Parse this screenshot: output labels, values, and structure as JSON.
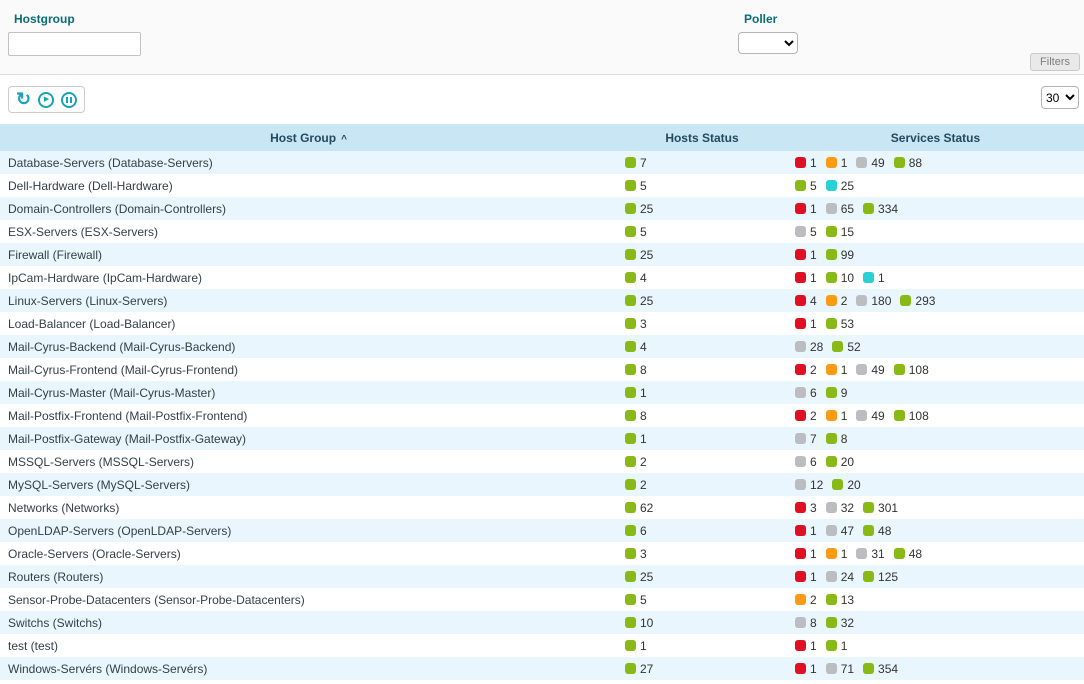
{
  "filters": {
    "hostgroup_label": "Hostgroup",
    "hostgroup_value": "",
    "poller_label": "Poller",
    "poller_value": "",
    "filters_button_label": "Filters"
  },
  "toolbar": {
    "page_size": "30"
  },
  "icons": {
    "sort_asc": "^",
    "refresh": "↻",
    "play": "▶"
  },
  "status_colors": {
    "green": "#88B917",
    "red": "#E01022",
    "orange": "#FF9A13",
    "gray": "#BCBDC0",
    "cyan": "#2AD1D4"
  },
  "table": {
    "headers": {
      "host_group": "Host Group",
      "hosts_status": "Hosts Status",
      "services_status": "Services Status"
    },
    "rows": [
      {
        "name": "Database-Servers (Database-Servers)",
        "hosts": [
          {
            "color": "green",
            "value": "7"
          }
        ],
        "services": [
          {
            "color": "red",
            "value": "1"
          },
          {
            "color": "orange",
            "value": "1"
          },
          {
            "color": "gray",
            "value": "49"
          },
          {
            "color": "green",
            "value": "88"
          }
        ]
      },
      {
        "name": "Dell-Hardware (Dell-Hardware)",
        "hosts": [
          {
            "color": "green",
            "value": "5"
          }
        ],
        "services": [
          {
            "color": "green",
            "value": "5"
          },
          {
            "color": "cyan",
            "value": "25"
          }
        ]
      },
      {
        "name": "Domain-Controllers (Domain-Controllers)",
        "hosts": [
          {
            "color": "green",
            "value": "25"
          }
        ],
        "services": [
          {
            "color": "red",
            "value": "1"
          },
          {
            "color": "gray",
            "value": "65"
          },
          {
            "color": "green",
            "value": "334"
          }
        ]
      },
      {
        "name": "ESX-Servers (ESX-Servers)",
        "hosts": [
          {
            "color": "green",
            "value": "5"
          }
        ],
        "services": [
          {
            "color": "gray",
            "value": "5"
          },
          {
            "color": "green",
            "value": "15"
          }
        ]
      },
      {
        "name": "Firewall (Firewall)",
        "hosts": [
          {
            "color": "green",
            "value": "25"
          }
        ],
        "services": [
          {
            "color": "red",
            "value": "1"
          },
          {
            "color": "green",
            "value": "99"
          }
        ]
      },
      {
        "name": "IpCam-Hardware (IpCam-Hardware)",
        "hosts": [
          {
            "color": "green",
            "value": "4"
          }
        ],
        "services": [
          {
            "color": "red",
            "value": "1"
          },
          {
            "color": "green",
            "value": "10"
          },
          {
            "color": "cyan",
            "value": "1"
          }
        ]
      },
      {
        "name": "Linux-Servers (Linux-Servers)",
        "hosts": [
          {
            "color": "green",
            "value": "25"
          }
        ],
        "services": [
          {
            "color": "red",
            "value": "4"
          },
          {
            "color": "orange",
            "value": "2"
          },
          {
            "color": "gray",
            "value": "180"
          },
          {
            "color": "green",
            "value": "293"
          }
        ]
      },
      {
        "name": "Load-Balancer (Load-Balancer)",
        "hosts": [
          {
            "color": "green",
            "value": "3"
          }
        ],
        "services": [
          {
            "color": "red",
            "value": "1"
          },
          {
            "color": "green",
            "value": "53"
          }
        ]
      },
      {
        "name": "Mail-Cyrus-Backend (Mail-Cyrus-Backend)",
        "hosts": [
          {
            "color": "green",
            "value": "4"
          }
        ],
        "services": [
          {
            "color": "gray",
            "value": "28"
          },
          {
            "color": "green",
            "value": "52"
          }
        ]
      },
      {
        "name": "Mail-Cyrus-Frontend (Mail-Cyrus-Frontend)",
        "hosts": [
          {
            "color": "green",
            "value": "8"
          }
        ],
        "services": [
          {
            "color": "red",
            "value": "2"
          },
          {
            "color": "orange",
            "value": "1"
          },
          {
            "color": "gray",
            "value": "49"
          },
          {
            "color": "green",
            "value": "108"
          }
        ]
      },
      {
        "name": "Mail-Cyrus-Master (Mail-Cyrus-Master)",
        "hosts": [
          {
            "color": "green",
            "value": "1"
          }
        ],
        "services": [
          {
            "color": "gray",
            "value": "6"
          },
          {
            "color": "green",
            "value": "9"
          }
        ]
      },
      {
        "name": "Mail-Postfix-Frontend (Mail-Postfix-Frontend)",
        "hosts": [
          {
            "color": "green",
            "value": "8"
          }
        ],
        "services": [
          {
            "color": "red",
            "value": "2"
          },
          {
            "color": "orange",
            "value": "1"
          },
          {
            "color": "gray",
            "value": "49"
          },
          {
            "color": "green",
            "value": "108"
          }
        ]
      },
      {
        "name": "Mail-Postfix-Gateway (Mail-Postfix-Gateway)",
        "hosts": [
          {
            "color": "green",
            "value": "1"
          }
        ],
        "services": [
          {
            "color": "gray",
            "value": "7"
          },
          {
            "color": "green",
            "value": "8"
          }
        ]
      },
      {
        "name": "MSSQL-Servers (MSSQL-Servers)",
        "hosts": [
          {
            "color": "green",
            "value": "2"
          }
        ],
        "services": [
          {
            "color": "gray",
            "value": "6"
          },
          {
            "color": "green",
            "value": "20"
          }
        ]
      },
      {
        "name": "MySQL-Servers (MySQL-Servers)",
        "hosts": [
          {
            "color": "green",
            "value": "2"
          }
        ],
        "services": [
          {
            "color": "gray",
            "value": "12"
          },
          {
            "color": "green",
            "value": "20"
          }
        ]
      },
      {
        "name": "Networks (Networks)",
        "hosts": [
          {
            "color": "green",
            "value": "62"
          }
        ],
        "services": [
          {
            "color": "red",
            "value": "3"
          },
          {
            "color": "gray",
            "value": "32"
          },
          {
            "color": "green",
            "value": "301"
          }
        ]
      },
      {
        "name": "OpenLDAP-Servers (OpenLDAP-Servers)",
        "hosts": [
          {
            "color": "green",
            "value": "6"
          }
        ],
        "services": [
          {
            "color": "red",
            "value": "1"
          },
          {
            "color": "gray",
            "value": "47"
          },
          {
            "color": "green",
            "value": "48"
          }
        ]
      },
      {
        "name": "Oracle-Servers (Oracle-Servers)",
        "hosts": [
          {
            "color": "green",
            "value": "3"
          }
        ],
        "services": [
          {
            "color": "red",
            "value": "1"
          },
          {
            "color": "orange",
            "value": "1"
          },
          {
            "color": "gray",
            "value": "31"
          },
          {
            "color": "green",
            "value": "48"
          }
        ]
      },
      {
        "name": "Routers (Routers)",
        "hosts": [
          {
            "color": "green",
            "value": "25"
          }
        ],
        "services": [
          {
            "color": "red",
            "value": "1"
          },
          {
            "color": "gray",
            "value": "24"
          },
          {
            "color": "green",
            "value": "125"
          }
        ]
      },
      {
        "name": "Sensor-Probe-Datacenters (Sensor-Probe-Datacenters)",
        "hosts": [
          {
            "color": "green",
            "value": "5"
          }
        ],
        "services": [
          {
            "color": "orange",
            "value": "2"
          },
          {
            "color": "green",
            "value": "13"
          }
        ]
      },
      {
        "name": "Switchs (Switchs)",
        "hosts": [
          {
            "color": "green",
            "value": "10"
          }
        ],
        "services": [
          {
            "color": "gray",
            "value": "8"
          },
          {
            "color": "green",
            "value": "32"
          }
        ]
      },
      {
        "name": "test (test)",
        "hosts": [
          {
            "color": "green",
            "value": "1"
          }
        ],
        "services": [
          {
            "color": "red",
            "value": "1"
          },
          {
            "color": "green",
            "value": "1"
          }
        ]
      },
      {
        "name": "Windows-Servérs (Windows-Servérs)",
        "hosts": [
          {
            "color": "green",
            "value": "27"
          }
        ],
        "services": [
          {
            "color": "red",
            "value": "1"
          },
          {
            "color": "gray",
            "value": "71"
          },
          {
            "color": "green",
            "value": "354"
          }
        ]
      }
    ]
  }
}
